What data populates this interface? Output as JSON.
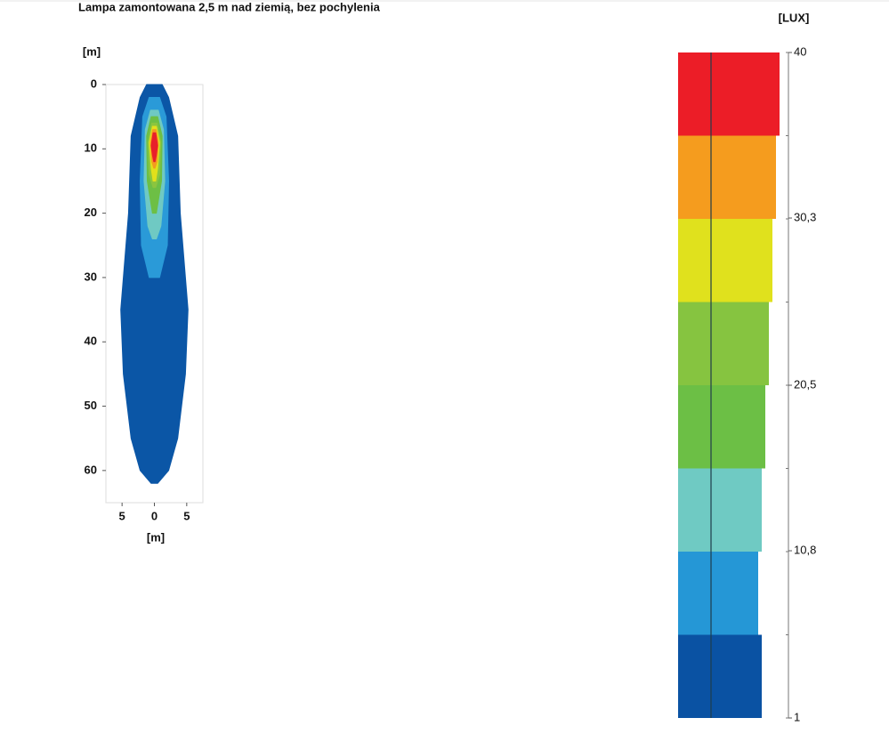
{
  "chart_data": {
    "type": "isolux",
    "title": "Lampa zamontowana 2,5 m nad ziemią, bez pochylenia",
    "y_label": "[m]",
    "x_label": "[m]",
    "xlim": [
      -7.5,
      7.5
    ],
    "xticks": [
      {
        "value": -5,
        "label": "5"
      },
      0,
      5
    ],
    "ylim": [
      0,
      65
    ],
    "yticks": [
      0,
      10,
      20,
      30,
      40,
      50,
      60
    ],
    "contours": [
      {
        "color": "#0b56a6",
        "outline": [
          [
            0,
            1.2
          ],
          [
            2,
            2.2
          ],
          [
            8,
            3.6
          ],
          [
            20,
            4
          ],
          [
            35,
            5.2
          ],
          [
            45,
            4.8
          ],
          [
            55,
            3.6
          ],
          [
            60,
            2.2
          ],
          [
            62,
            0.5
          ]
        ]
      },
      {
        "color": "#2a9ad8",
        "outline": [
          [
            2,
            0.8
          ],
          [
            5,
            1.8
          ],
          [
            15,
            2.2
          ],
          [
            25,
            2
          ],
          [
            30,
            0.8
          ]
        ]
      },
      {
        "color": "#6fc9c3",
        "outline": [
          [
            4,
            0.6
          ],
          [
            7,
            1.4
          ],
          [
            15,
            1.6
          ],
          [
            22,
            1
          ],
          [
            24,
            0.3
          ]
        ]
      },
      {
        "color": "#6dbf45",
        "outline": [
          [
            5,
            0.5
          ],
          [
            8,
            1.2
          ],
          [
            15,
            1.1
          ],
          [
            20,
            0.3
          ]
        ]
      },
      {
        "color": "#8bc53f",
        "outline": [
          [
            6,
            0.4
          ],
          [
            9,
            1
          ],
          [
            14,
            0.8
          ],
          [
            16,
            0.2
          ]
        ]
      },
      {
        "color": "#e2e01b",
        "outline": [
          [
            6.5,
            0.3
          ],
          [
            9,
            0.8
          ],
          [
            13,
            0.5
          ],
          [
            15,
            0.2
          ]
        ]
      },
      {
        "color": "#f39c1f",
        "outline": [
          [
            7,
            0.25
          ],
          [
            9,
            0.6
          ],
          [
            12,
            0.4
          ],
          [
            13,
            0.1
          ]
        ]
      },
      {
        "color": "#e8202a",
        "outline": [
          [
            7.5,
            0.2
          ],
          [
            9.5,
            0.5
          ],
          [
            11,
            0.3
          ],
          [
            12,
            0.1
          ]
        ]
      }
    ],
    "colorbar": {
      "label": "[LUX]",
      "lim": [
        1,
        40
      ],
      "ticks": [
        40,
        {
          "value": 30.3,
          "label": "30,3"
        },
        {
          "value": 20.5,
          "label": "20,5"
        },
        {
          "value": 10.8,
          "label": "10,8"
        },
        1
      ],
      "band_edges": [
        1,
        5.875,
        10.75,
        15.625,
        20.5,
        25.375,
        30.25,
        35.125,
        40
      ],
      "colors": [
        "#0a52a3",
        "#2597d6",
        "#6fcac3",
        "#6cbf45",
        "#86c440",
        "#e0e11d",
        "#f59c1e",
        "#ec1d27"
      ]
    }
  }
}
